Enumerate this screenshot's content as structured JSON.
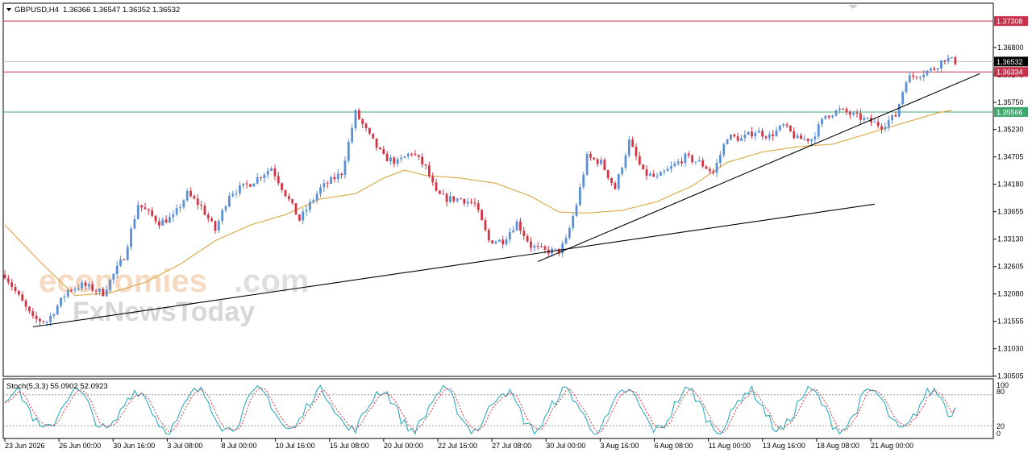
{
  "header": {
    "symbol": "GBPUSD,H4",
    "ohlc": "1.36366 1.36547 1.36352 1.36532"
  },
  "stoch": {
    "label": "Stoch(5,3,3) 55.0902 52.0923",
    "levels": [
      "100",
      "80",
      "20",
      "0"
    ]
  },
  "watermark": {
    "brand_a": "economies",
    "brand_b": ".com",
    "brand_c": "FxNewsToday"
  },
  "colors": {
    "bull": "#5b8fd6",
    "bear": "#d43545",
    "ma": "#d9a640",
    "resistance": "#c8304a",
    "support": "#3daa6c",
    "price_line": "#c0c0c0",
    "stoch_main": "#1aa7b8",
    "stoch_signal": "#d43545"
  },
  "chart_data": {
    "type": "candlestick",
    "symbol": "GBPUSD",
    "timeframe": "H4",
    "ylim": [
      1.305,
      1.3765
    ],
    "y_ticks": [
      "1.36800",
      "1.36275",
      "1.35750",
      "1.35230",
      "1.34705",
      "1.34180",
      "1.33655",
      "1.33130",
      "1.32605",
      "1.32080",
      "1.31555",
      "1.31030",
      "1.30505"
    ],
    "x_ticks": [
      "23 Jun 2026",
      "26 Jun 00:00",
      "30 Jun 16:00",
      "3 Jul 08:00",
      "8 Jul 00:00",
      "10 Jul 16:00",
      "15 Jul 08:00",
      "20 Jul 00:00",
      "22 Jul 16:00",
      "27 Jul 08:00",
      "30 Jul 00:00",
      "3 Aug 16:00",
      "6 Aug 08:00",
      "11 Aug 00:00",
      "13 Aug 16:00",
      "18 Aug 08:00",
      "21 Aug 00:00"
    ],
    "close_path": [
      [
        0,
        1.3245
      ],
      [
        8,
        1.316
      ],
      [
        12,
        1.3155
      ],
      [
        18,
        1.3215
      ],
      [
        22,
        1.3225
      ],
      [
        28,
        1.321
      ],
      [
        34,
        1.328
      ],
      [
        38,
        1.338
      ],
      [
        44,
        1.3345
      ],
      [
        48,
        1.3355
      ],
      [
        52,
        1.34
      ],
      [
        56,
        1.3375
      ],
      [
        60,
        1.333
      ],
      [
        64,
        1.34
      ],
      [
        70,
        1.342
      ],
      [
        76,
        1.345
      ],
      [
        80,
        1.34
      ],
      [
        84,
        1.335
      ],
      [
        90,
        1.341
      ],
      [
        96,
        1.344
      ],
      [
        100,
        1.3555
      ],
      [
        104,
        1.351
      ],
      [
        108,
        1.347
      ],
      [
        112,
        1.346
      ],
      [
        116,
        1.348
      ],
      [
        120,
        1.345
      ],
      [
        123,
        1.34
      ],
      [
        126,
        1.339
      ],
      [
        130,
        1.339
      ],
      [
        134,
        1.338
      ],
      [
        138,
        1.331
      ],
      [
        142,
        1.331
      ],
      [
        146,
        1.3345
      ],
      [
        150,
        1.33
      ],
      [
        154,
        1.329
      ],
      [
        158,
        1.329
      ],
      [
        160,
        1.331
      ],
      [
        163,
        1.338
      ],
      [
        166,
        1.347
      ],
      [
        170,
        1.346
      ],
      [
        174,
        1.341
      ],
      [
        178,
        1.35
      ],
      [
        182,
        1.344
      ],
      [
        186,
        1.343
      ],
      [
        190,
        1.345
      ],
      [
        194,
        1.347
      ],
      [
        198,
        1.346
      ],
      [
        202,
        1.344
      ],
      [
        206,
        1.351
      ],
      [
        210,
        1.3505
      ],
      [
        214,
        1.352
      ],
      [
        218,
        1.351
      ],
      [
        222,
        1.353
      ],
      [
        226,
        1.3505
      ],
      [
        230,
        1.3505
      ],
      [
        234,
        1.355
      ],
      [
        238,
        1.356
      ],
      [
        242,
        1.355
      ],
      [
        246,
        1.354
      ],
      [
        250,
        1.353
      ],
      [
        254,
        1.355
      ],
      [
        257,
        1.362
      ],
      [
        261,
        1.363
      ],
      [
        265,
        1.364
      ],
      [
        268,
        1.366
      ],
      [
        271,
        1.3653
      ]
    ],
    "moving_average": [
      [
        0,
        1.334
      ],
      [
        10,
        1.327
      ],
      [
        20,
        1.3205
      ],
      [
        30,
        1.321
      ],
      [
        40,
        1.323
      ],
      [
        50,
        1.3265
      ],
      [
        60,
        1.331
      ],
      [
        70,
        1.334
      ],
      [
        80,
        1.336
      ],
      [
        90,
        1.339
      ],
      [
        100,
        1.34
      ],
      [
        108,
        1.343
      ],
      [
        114,
        1.3445
      ],
      [
        120,
        1.3435
      ],
      [
        130,
        1.343
      ],
      [
        140,
        1.342
      ],
      [
        150,
        1.3395
      ],
      [
        158,
        1.3365
      ],
      [
        166,
        1.3363
      ],
      [
        176,
        1.3368
      ],
      [
        186,
        1.3385
      ],
      [
        196,
        1.3415
      ],
      [
        206,
        1.346
      ],
      [
        216,
        1.348
      ],
      [
        226,
        1.349
      ],
      [
        236,
        1.3495
      ],
      [
        246,
        1.3515
      ],
      [
        256,
        1.3535
      ],
      [
        266,
        1.3555
      ],
      [
        270,
        1.356
      ]
    ],
    "horizontal_levels": [
      {
        "label": "1.37308",
        "value": 1.37308,
        "role": "resistance"
      },
      {
        "label": "1.36532",
        "value": 1.36532,
        "role": "current_price"
      },
      {
        "label": "1.36334",
        "value": 1.36334,
        "role": "resistance"
      },
      {
        "label": "1.35566",
        "value": 1.35566,
        "role": "support"
      }
    ],
    "trendlines": [
      {
        "from": [
          8,
          1.3145
        ],
        "to": [
          248,
          1.338
        ]
      },
      {
        "from": [
          152,
          1.327
        ],
        "to": [
          278,
          1.363
        ]
      }
    ],
    "stochastic": {
      "k": 55.0902,
      "d": 52.0923,
      "ylim": [
        0,
        100
      ],
      "levels": [
        80,
        20
      ]
    }
  }
}
